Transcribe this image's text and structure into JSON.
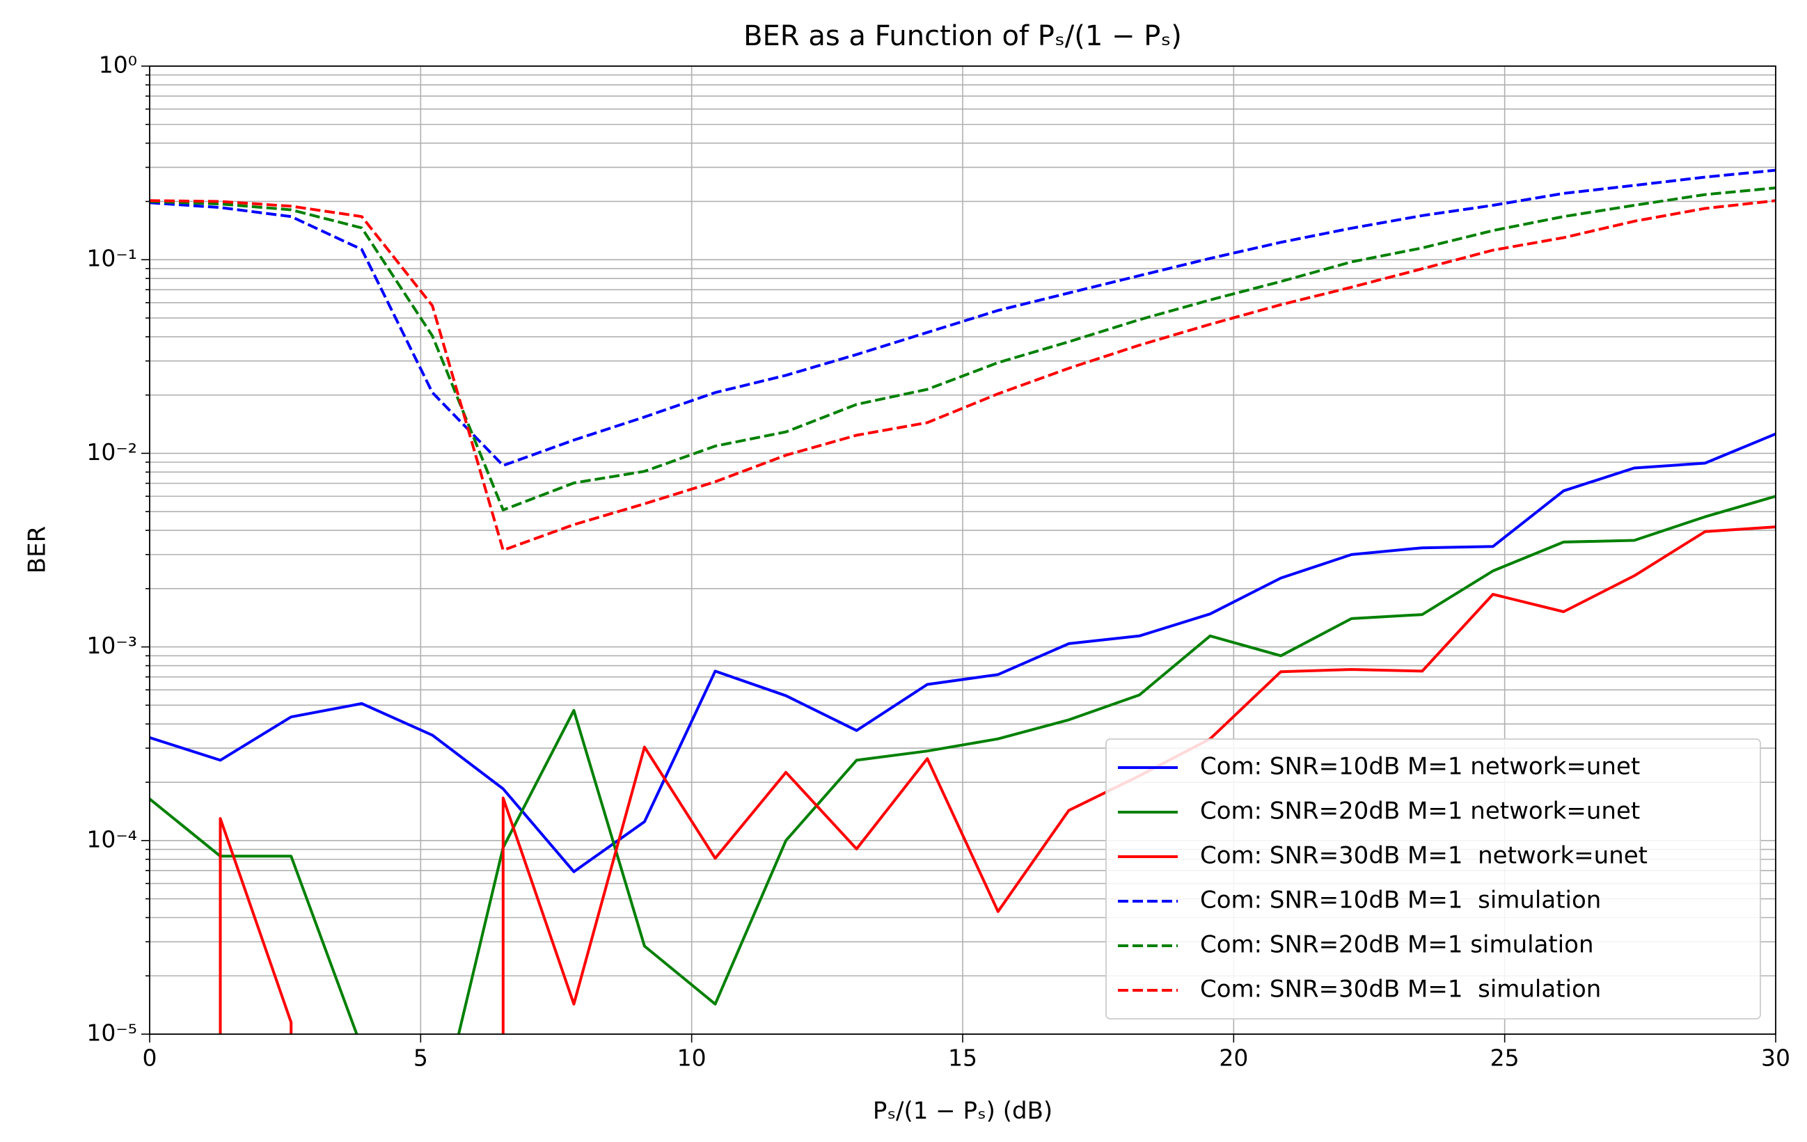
{
  "chart_data": {
    "type": "line",
    "title": "BER as a Function of Pₛ/(1 − Pₛ)",
    "x_label": "Pₛ/(1 − Pₛ) (dB)",
    "y_label": "BER",
    "x": [
      0,
      1.304,
      2.609,
      3.913,
      5.217,
      6.522,
      7.826,
      9.13,
      10.435,
      11.739,
      13.043,
      14.348,
      15.652,
      16.957,
      18.261,
      19.565,
      20.87,
      22.174,
      23.478,
      24.783,
      26.087,
      27.391,
      28.696,
      30
    ],
    "series": [
      {
        "name": "Com: SNR=10dB M=1 network=unet",
        "color": "#0000ff",
        "linestyle": "solid",
        "values": [
          0.00034,
          0.00026,
          0.000435,
          0.00051,
          0.00035,
          0.000185,
          6.9e-05,
          0.000125,
          0.00075,
          0.00056,
          0.00037,
          0.00064,
          0.00072,
          0.00104,
          0.00114,
          0.00148,
          0.00227,
          0.003,
          0.00325,
          0.0033,
          0.0064,
          0.0084,
          0.0089,
          0.0126
        ]
      },
      {
        "name": "Com: SNR=20dB M=1 network=unet",
        "color": "#008000",
        "linestyle": "solid",
        "values": [
          0.000164,
          8.3e-05,
          8.3e-05,
          8.5e-06,
          2.7e-06,
          9.2e-05,
          0.00047,
          2.85e-05,
          1.43e-05,
          0.0001,
          0.00026,
          0.00029,
          0.000335,
          0.00042,
          0.000565,
          0.00114,
          0.0009,
          0.0014,
          0.00147,
          0.00247,
          0.00348,
          0.00355,
          0.0047,
          0.006
        ]
      },
      {
        "name": "Com: SNR=30dB M=1  network=unet",
        "color": "#ff0000",
        "linestyle": "solid",
        "values": [
          0,
          0.00013,
          1.15e-05,
          0,
          0,
          0.000166,
          1.43e-05,
          0.000304,
          8.1e-05,
          0.000225,
          9.05e-05,
          0.000265,
          4.3e-05,
          0.000143,
          0.000216,
          0.000335,
          0.000745,
          0.000765,
          0.00075,
          0.00187,
          0.00152,
          0.00233,
          0.00394,
          0.00417
        ]
      },
      {
        "name": "Com: SNR=10dB M=1  simulation",
        "color": "#0000ff",
        "linestyle": "dashed",
        "values": [
          0.197,
          0.186,
          0.167,
          0.113,
          0.0206,
          0.00865,
          0.0117,
          0.0154,
          0.0206,
          0.0253,
          0.0324,
          0.0421,
          0.0547,
          0.0673,
          0.0827,
          0.1016,
          0.123,
          0.1455,
          0.169,
          0.191,
          0.22,
          0.242,
          0.267,
          0.29
        ]
      },
      {
        "name": "Com: SNR=20dB M=1 simulation",
        "color": "#008000",
        "linestyle": "dashed",
        "values": [
          0.2,
          0.194,
          0.181,
          0.146,
          0.0404,
          0.0051,
          0.00703,
          0.00807,
          0.0109,
          0.0129,
          0.0179,
          0.0214,
          0.0294,
          0.0377,
          0.049,
          0.062,
          0.0772,
          0.0975,
          0.115,
          0.1415,
          0.167,
          0.191,
          0.217,
          0.235
        ]
      },
      {
        "name": "Com: SNR=30dB M=1  simulation",
        "color": "#ff0000",
        "linestyle": "dashed",
        "values": [
          0.202,
          0.2,
          0.189,
          0.167,
          0.0578,
          0.00316,
          0.00428,
          0.00549,
          0.00713,
          0.00978,
          0.0124,
          0.0144,
          0.0203,
          0.0275,
          0.0362,
          0.0464,
          0.0586,
          0.0721,
          0.0898,
          0.112,
          0.13,
          0.158,
          0.184,
          0.202
        ]
      }
    ],
    "xlim": [
      0,
      30
    ],
    "xticks": [
      0,
      5,
      10,
      15,
      20,
      25,
      30
    ],
    "ylim": [
      1e-05,
      1
    ],
    "y_scale": "log",
    "yticks": [
      {
        "value": 1e-05,
        "label": "10⁻⁵"
      },
      {
        "value": 0.0001,
        "label": "10⁻⁴"
      },
      {
        "value": 0.001,
        "label": "10⁻³"
      },
      {
        "value": 0.01,
        "label": "10⁻²"
      },
      {
        "value": 0.1,
        "label": "10⁻¹"
      },
      {
        "value": 1,
        "label": "10⁰"
      }
    ],
    "grid": true,
    "minor_grid": true,
    "legend_position": "lower right"
  }
}
